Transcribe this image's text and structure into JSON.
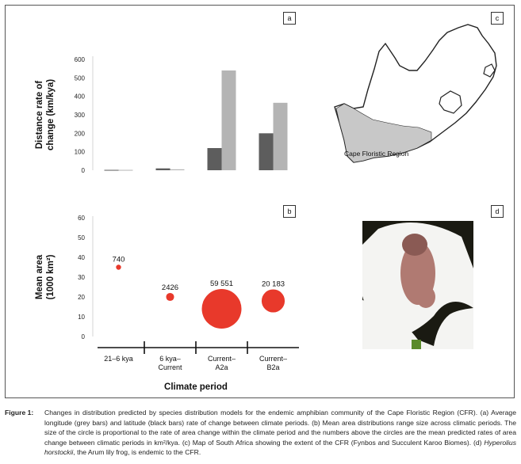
{
  "figure": {
    "panel_labels": {
      "a": "a",
      "b": "b",
      "c": "c",
      "d": "d"
    }
  },
  "chart_data": [
    {
      "type": "bar",
      "panel": "a",
      "ylabel": "Distance rate of change (km/kya)",
      "ylabel_lines": [
        "Distance rate of",
        "change (km/kya)"
      ],
      "ylim": [
        0,
        600
      ],
      "yticks": [
        0,
        100,
        200,
        300,
        400,
        500,
        600
      ],
      "categories": [
        "21–6 kya",
        "6 kya–Current",
        "Current–A2a",
        "Current–B2a"
      ],
      "series": [
        {
          "name": "latitude",
          "color": "#5d5d5d",
          "values": [
            2,
            10,
            120,
            200
          ]
        },
        {
          "name": "longitude",
          "color": "#b4b4b4",
          "values": [
            2,
            5,
            540,
            365
          ]
        }
      ],
      "grid": false
    },
    {
      "type": "scatter",
      "panel": "b",
      "ylabel": "Mean area (1000 km²)",
      "ylabel_lines": [
        "Mean area",
        "(1000 km²)"
      ],
      "ylim": [
        0,
        60
      ],
      "yticks": [
        0,
        10,
        20,
        30,
        40,
        50,
        60
      ],
      "xlabel": "Climate period",
      "categories": [
        {
          "lines": [
            "21–6 kya"
          ]
        },
        {
          "lines": [
            "6 kya–",
            "Current"
          ]
        },
        {
          "lines": [
            "Current–",
            "A2a"
          ]
        },
        {
          "lines": [
            "Current–",
            "B2a"
          ]
        }
      ],
      "points": [
        {
          "y": 35,
          "rate": 740,
          "label": "740"
        },
        {
          "y": 20,
          "rate": 2426,
          "label": "2426"
        },
        {
          "y": 14,
          "rate": 59551,
          "label": "59 551"
        },
        {
          "y": 18,
          "rate": 20183,
          "label": "20 183"
        }
      ],
      "point_color": "#e8392b",
      "grid": false
    }
  ],
  "map": {
    "label": "Cape Floristic Region",
    "colors": {
      "land": "#ffffff",
      "cfr": "#c8c8c8",
      "outline": "#222222"
    }
  },
  "photo": {
    "colors": {
      "frog": "#b07a72",
      "frog_dark": "#8a5a54",
      "lily": "#f4f4f2",
      "background": "#1a1a12",
      "stem": "#5a8a2a"
    }
  },
  "caption": {
    "label": "Figure 1:",
    "text_1": "Changes in distribution predicted by species distribution models for the endemic amphibian community of the Cape Floristic Region (CFR). (a) Average longitude (grey bars) and latitude (black bars) rate of change between climate periods. (b) Mean area distributions range size across climatic periods. The size of the circle is proportional to the rate of area change within the climate period and the numbers above the circles are the mean predicted rates of area change between climatic periods in km²/kya. (c) Map of South Africa showing the extent of the CFR (Fynbos and Succulent Karoo Biomes). (d) ",
    "species": "Hyperolius horstockii",
    "text_2": ", the Arum lily frog, is endemic to the CFR."
  }
}
